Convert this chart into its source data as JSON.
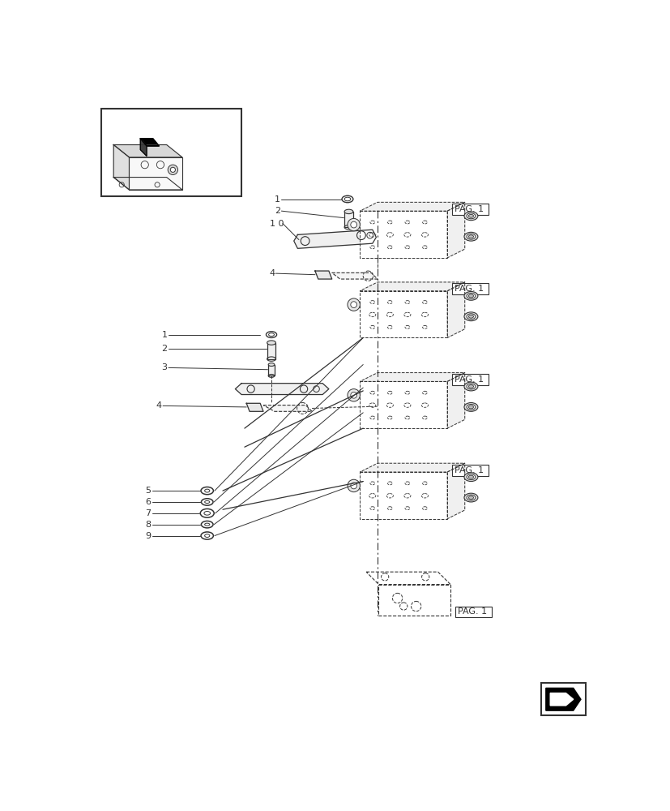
{
  "bg_color": "#ffffff",
  "line_color": "#333333",
  "pag_labels": [
    "PAG. 1",
    "PAG. 1",
    "PAG. 1",
    "PAG. 1",
    "PAG. 1"
  ],
  "top_labels": [
    "1",
    "2",
    "1 0",
    "4"
  ],
  "mid_labels": [
    "1",
    "2",
    "3",
    "4"
  ],
  "bot_labels": [
    "5",
    "6",
    "7",
    "8",
    "9"
  ]
}
